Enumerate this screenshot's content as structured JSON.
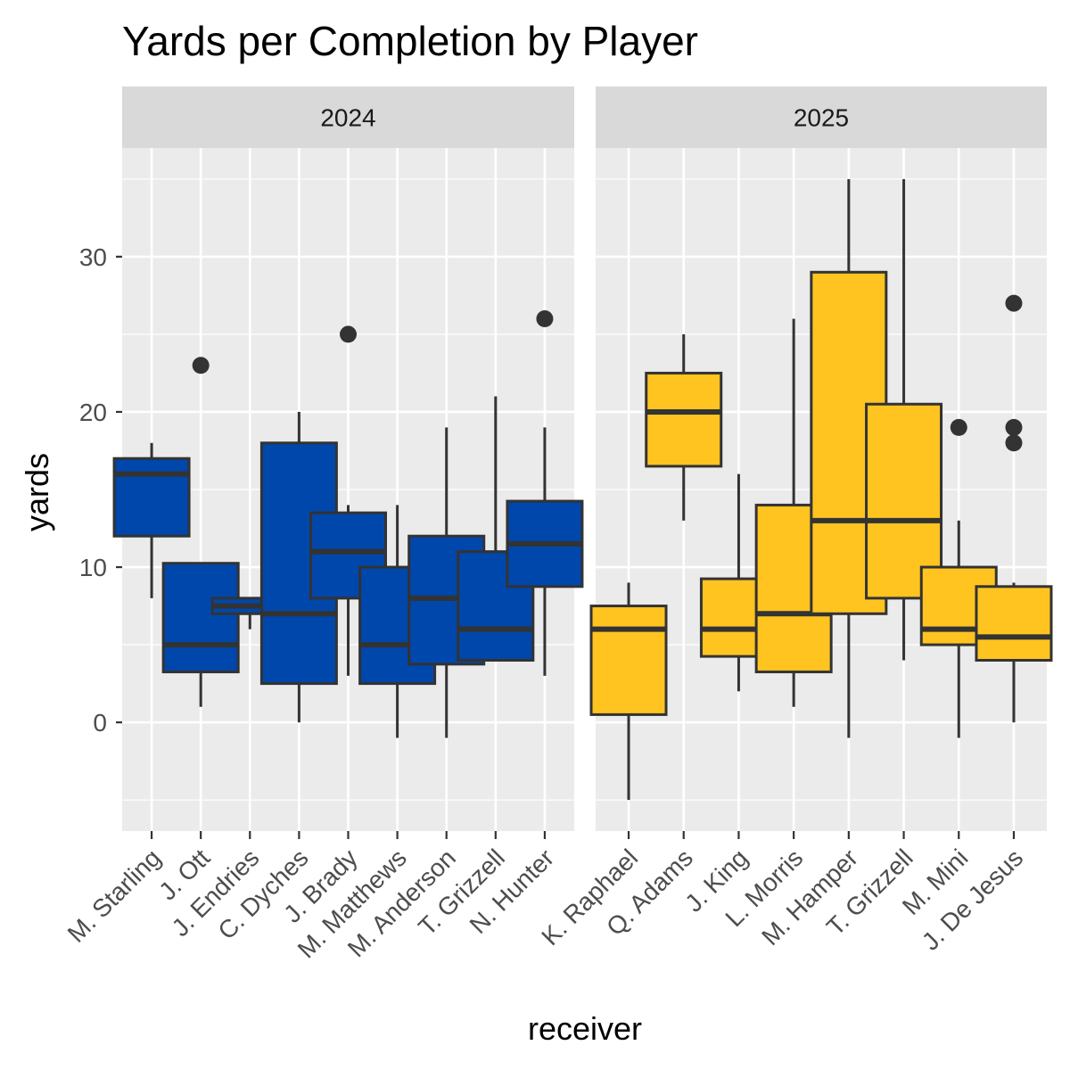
{
  "chart_data": {
    "type": "boxplot",
    "title": "Yards per Completion by Player",
    "xlabel": "receiver",
    "ylabel": "yards",
    "ylim": [
      -7,
      37
    ],
    "yticks": [
      0,
      10,
      20,
      30
    ],
    "grid": true,
    "legend": "none",
    "panels": [
      {
        "label": "2024",
        "fill_color": "#0047AB",
        "boxes": [
          {
            "receiver": "M. Starling",
            "lower_whisker": 8,
            "q1": 12,
            "median": 16,
            "q3": 17,
            "upper_whisker": 18,
            "outliers": []
          },
          {
            "receiver": "J. Ott",
            "lower_whisker": 1,
            "q1": 3.25,
            "median": 5,
            "q3": 10.25,
            "upper_whisker": 10.25,
            "outliers": [
              23
            ]
          },
          {
            "receiver": "J. Endries",
            "lower_whisker": 6,
            "q1": 7,
            "median": 7.5,
            "q3": 8,
            "upper_whisker": 8,
            "outliers": []
          },
          {
            "receiver": "C. Dyches",
            "lower_whisker": 0,
            "q1": 2.5,
            "median": 7,
            "q3": 18,
            "upper_whisker": 20,
            "outliers": []
          },
          {
            "receiver": "J. Brady",
            "lower_whisker": 3,
            "q1": 8,
            "median": 11,
            "q3": 13.5,
            "upper_whisker": 14,
            "outliers": [
              25
            ]
          },
          {
            "receiver": "M. Matthews",
            "lower_whisker": -1,
            "q1": 2.5,
            "median": 5,
            "q3": 10,
            "upper_whisker": 14,
            "outliers": []
          },
          {
            "receiver": "M. Anderson",
            "lower_whisker": -1,
            "q1": 3.75,
            "median": 8,
            "q3": 12,
            "upper_whisker": 19,
            "outliers": []
          },
          {
            "receiver": "T. Grizzell",
            "lower_whisker": 4,
            "q1": 4,
            "median": 6,
            "q3": 11,
            "upper_whisker": 21,
            "outliers": []
          },
          {
            "receiver": "N. Hunter",
            "lower_whisker": 3,
            "q1": 8.75,
            "median": 11.5,
            "q3": 14.25,
            "upper_whisker": 19,
            "outliers": [
              26
            ]
          }
        ]
      },
      {
        "label": "2025",
        "fill_color": "#FFC41F",
        "boxes": [
          {
            "receiver": "K. Raphael",
            "lower_whisker": -5,
            "q1": 0.5,
            "median": 6,
            "q3": 7.5,
            "upper_whisker": 9,
            "outliers": []
          },
          {
            "receiver": "Q. Adams",
            "lower_whisker": 13,
            "q1": 16.5,
            "median": 20,
            "q3": 22.5,
            "upper_whisker": 25,
            "outliers": []
          },
          {
            "receiver": "J. King",
            "lower_whisker": 2,
            "q1": 4.25,
            "median": 6,
            "q3": 9.25,
            "upper_whisker": 16,
            "outliers": []
          },
          {
            "receiver": "L. Morris",
            "lower_whisker": 1,
            "q1": 3.25,
            "median": 7,
            "q3": 14,
            "upper_whisker": 26,
            "outliers": []
          },
          {
            "receiver": "M. Hamper",
            "lower_whisker": -1,
            "q1": 7,
            "median": 13,
            "q3": 29,
            "upper_whisker": 35,
            "outliers": []
          },
          {
            "receiver": "T. Grizzell",
            "lower_whisker": 4,
            "q1": 8,
            "median": 13,
            "q3": 20.5,
            "upper_whisker": 35,
            "outliers": []
          },
          {
            "receiver": "M. Mini",
            "lower_whisker": -1,
            "q1": 5,
            "median": 6,
            "q3": 10,
            "upper_whisker": 13,
            "outliers": [
              19
            ]
          },
          {
            "receiver": "J. De Jesus",
            "lower_whisker": 0,
            "q1": 4,
            "median": 5.5,
            "q3": 8.75,
            "upper_whisker": 9,
            "outliers": [
              18,
              19,
              27
            ]
          }
        ]
      }
    ]
  },
  "colors": {
    "panel_background": "#EBEBEB",
    "strip_background": "#D9D9D9",
    "grid": "#FFFFFF",
    "box_outline": "#333333",
    "outlier": "#333333",
    "tick": "#333333",
    "tick_label": "#4D4D4D"
  }
}
